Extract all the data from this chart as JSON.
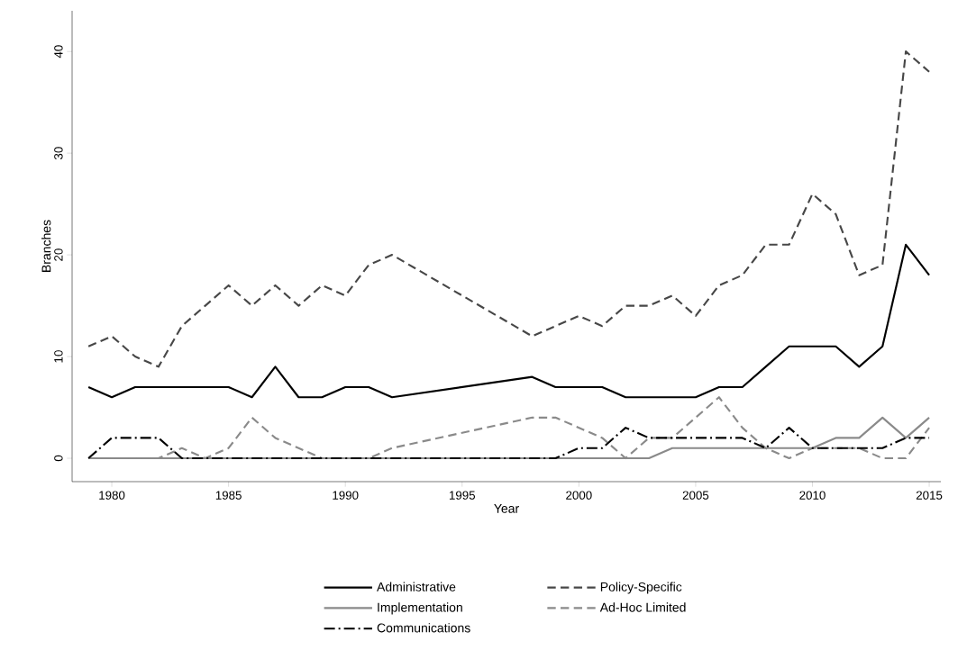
{
  "chart_data": {
    "type": "line",
    "xlabel": "Year",
    "ylabel": "Branches",
    "x": [
      1979,
      1980,
      1981,
      1982,
      1983,
      1984,
      1985,
      1986,
      1987,
      1988,
      1989,
      1990,
      1991,
      1992,
      1998,
      1999,
      2000,
      2001,
      2002,
      2003,
      2004,
      2005,
      2006,
      2007,
      2008,
      2009,
      2010,
      2011,
      2012,
      2013,
      2014,
      2015
    ],
    "xlim": [
      1978.3,
      2015.5
    ],
    "ylim": [
      -2.3,
      44
    ],
    "xticks": [
      1980,
      1985,
      1990,
      1995,
      2000,
      2005,
      2010,
      2015
    ],
    "yticks": [
      0,
      10,
      20,
      30,
      40
    ],
    "grid": false,
    "legend": "bottom",
    "marker": "none",
    "series": [
      {
        "name": "Administrative",
        "color": "#000000",
        "line_style": "solid",
        "values": [
          7,
          6,
          7,
          7,
          7,
          7,
          7,
          6,
          9,
          6,
          6,
          7,
          7,
          6,
          8,
          7,
          7,
          7,
          6,
          6,
          6,
          6,
          7,
          7,
          9,
          11,
          11,
          11,
          9,
          11,
          21,
          18
        ]
      },
      {
        "name": "Policy-Specific",
        "color": "#474747",
        "line_style": "dashed",
        "values": [
          11,
          12,
          10,
          9,
          13,
          15,
          17,
          15,
          17,
          15,
          17,
          16,
          19,
          20,
          12,
          13,
          14,
          13,
          15,
          15,
          16,
          14,
          17,
          18,
          21,
          21,
          26,
          24,
          18,
          19,
          40,
          38
        ]
      },
      {
        "name": "Implementation",
        "color": "#8a8a8a",
        "line_style": "solid",
        "values": [
          0,
          0,
          0,
          0,
          0,
          0,
          0,
          0,
          0,
          0,
          0,
          0,
          0,
          0,
          0,
          0,
          0,
          0,
          0,
          0,
          1,
          1,
          1,
          1,
          1,
          1,
          1,
          2,
          2,
          4,
          2,
          4
        ]
      },
      {
        "name": "Ad-Hoc Limited",
        "color": "#8a8a8a",
        "line_style": "dashed",
        "values": [
          0,
          0,
          0,
          0,
          1,
          0,
          1,
          4,
          2,
          1,
          0,
          0,
          0,
          1,
          4,
          4,
          3,
          2,
          0,
          2,
          2,
          4,
          6,
          3,
          1,
          0,
          1,
          1,
          1,
          0,
          0,
          3
        ]
      },
      {
        "name": "Communications",
        "color": "#000000",
        "line_style": "dashdot",
        "values": [
          0,
          2,
          2,
          2,
          0,
          0,
          0,
          0,
          0,
          0,
          0,
          0,
          0,
          0,
          0,
          0,
          1,
          1,
          3,
          2,
          2,
          2,
          2,
          2,
          1,
          3,
          1,
          1,
          1,
          1,
          2,
          2
        ]
      }
    ]
  }
}
